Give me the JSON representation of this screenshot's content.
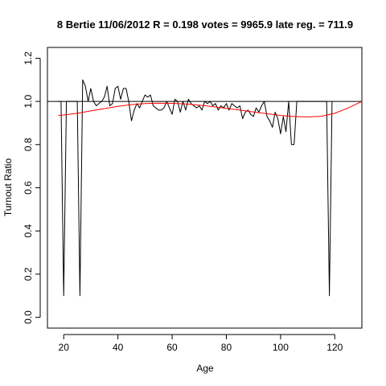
{
  "chart_data": {
    "type": "line",
    "title": "8 Bertie 11/06/2012 R = 0.198 votes = 9965.9 late reg. = 711.9",
    "xlabel": "Age",
    "ylabel": "Turnout Ratio",
    "xlim": [
      14,
      130
    ],
    "ylim": [
      -0.05,
      1.25
    ],
    "x_ticks": [
      20,
      40,
      60,
      80,
      100,
      120
    ],
    "y_ticks": [
      0.0,
      0.2,
      0.4,
      0.6,
      0.8,
      1.0,
      1.2
    ],
    "x_tick_labels": [
      "20",
      "40",
      "60",
      "80",
      "100",
      "120"
    ],
    "y_tick_labels": [
      "0.0",
      "0.2",
      "0.4",
      "0.6",
      "0.8",
      "1.0",
      "1.2"
    ],
    "reference_line": {
      "y": 1.0,
      "color": "#000000"
    },
    "grid": false,
    "series": [
      {
        "color": "#000000",
        "x": [
          18,
          19,
          20,
          21,
          22,
          23,
          24,
          25,
          26,
          27,
          28,
          29,
          30,
          31,
          32,
          33,
          34,
          35,
          36,
          37,
          38,
          39,
          40,
          41,
          42,
          43,
          44,
          45,
          46,
          47,
          48,
          49,
          50,
          51,
          52,
          53,
          54,
          55,
          56,
          57,
          58,
          59,
          60,
          61,
          62,
          63,
          64,
          65,
          66,
          67,
          68,
          69,
          70,
          71,
          72,
          73,
          74,
          75,
          76,
          77,
          78,
          79,
          80,
          81,
          82,
          83,
          84,
          85,
          86,
          87,
          88,
          89,
          90,
          91,
          92,
          93,
          94,
          95,
          96,
          97,
          98,
          99,
          100,
          101,
          102,
          103,
          104,
          105,
          106,
          107,
          108,
          109,
          110,
          111,
          112,
          113,
          114,
          115,
          116,
          117,
          118,
          119
        ],
        "y": [
          1.0,
          1.0,
          0.1,
          1.0,
          1.0,
          1.0,
          1.0,
          1.0,
          0.1,
          1.1,
          1.07,
          1.0,
          1.06,
          1.0,
          0.98,
          0.99,
          1.0,
          1.02,
          1.07,
          0.98,
          0.99,
          1.06,
          1.07,
          1.01,
          1.06,
          1.06,
          1.0,
          0.91,
          0.96,
          0.99,
          0.97,
          1.0,
          1.03,
          1.02,
          1.03,
          0.98,
          0.97,
          0.96,
          0.96,
          0.97,
          1.0,
          0.97,
          0.94,
          1.01,
          1.0,
          0.95,
          1.0,
          0.96,
          1.01,
          0.99,
          0.98,
          0.97,
          0.98,
          0.96,
          1.0,
          0.99,
          1.0,
          0.98,
          0.99,
          0.96,
          0.98,
          0.97,
          0.99,
          0.96,
          0.99,
          0.98,
          0.97,
          0.98,
          0.92,
          0.95,
          0.96,
          0.94,
          0.93,
          0.97,
          0.95,
          0.98,
          1.0,
          0.93,
          0.91,
          0.88,
          0.95,
          0.92,
          0.85,
          0.93,
          0.86,
          1.0,
          0.8,
          0.8,
          1.0,
          1.0,
          1.0,
          1.0,
          1.0,
          1.0,
          1.0,
          1.0,
          1.0,
          1.0,
          1.0,
          1.0,
          0.1,
          1.0
        ]
      },
      {
        "color": "#ff0000",
        "x": [
          18,
          20,
          25,
          30,
          35,
          40,
          45,
          50,
          55,
          60,
          65,
          70,
          75,
          80,
          85,
          90,
          95,
          100,
          105,
          110,
          115,
          120,
          125,
          130
        ],
        "y": [
          0.935,
          0.937,
          0.945,
          0.956,
          0.967,
          0.977,
          0.985,
          0.99,
          0.992,
          0.991,
          0.988,
          0.983,
          0.976,
          0.968,
          0.96,
          0.951,
          0.943,
          0.935,
          0.93,
          0.928,
          0.931,
          0.945,
          0.97,
          1.0
        ]
      }
    ]
  }
}
